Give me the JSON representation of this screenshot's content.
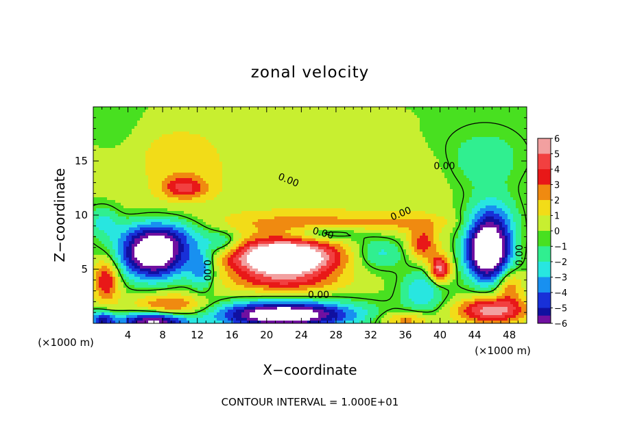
{
  "chart_data": {
    "type": "heatmap",
    "title": "zonal velocity",
    "xlabel": "X−coordinate",
    "ylabel": "Z−coordinate",
    "x_unit_left": "(×1000 m)",
    "x_unit_right": "(×1000 m)",
    "footer": "CONTOUR INTERVAL = 1.000E+01",
    "xlim": [
      0,
      50
    ],
    "ylim": [
      0,
      20
    ],
    "x_ticks": [
      4,
      8,
      12,
      16,
      20,
      24,
      28,
      32,
      36,
      40,
      44,
      48
    ],
    "x_tick_labels": [
      "4",
      "8",
      "12",
      "16",
      "20",
      "24",
      "28",
      "32",
      "36",
      "40",
      "44",
      "48"
    ],
    "y_ticks": [
      5,
      10,
      15
    ],
    "y_tick_labels": [
      "5",
      "10",
      "15"
    ],
    "contour_labels": [
      "0.00",
      "0.00",
      "0.00",
      "0.00",
      "0.00",
      "0.00",
      "0.00"
    ],
    "colorbar": {
      "levels": [
        6,
        5,
        4,
        3,
        2,
        1,
        0,
        -1,
        -2,
        -3,
        -4,
        -5,
        -6
      ],
      "labels": [
        "6",
        "5",
        "4",
        "3",
        "2",
        "1",
        "0",
        "−1",
        "−2",
        "−3",
        "−4",
        "−5",
        "−6"
      ],
      "colors": [
        "#f2a0a0",
        "#f24040",
        "#e81818",
        "#f08a10",
        "#f2dc18",
        "#c8ef30",
        "#48e020",
        "#30ef90",
        "#28e6e0",
        "#1890f0",
        "#1830d8",
        "#1010a0",
        "#7010a0"
      ]
    },
    "saturated_color": "#ffffff",
    "fields": [
      {
        "x": 25,
        "z": 11,
        "value": 0.9,
        "sx": 30,
        "sz": 6
      },
      {
        "x": 10,
        "z": 15.5,
        "value": 1.6,
        "sx": 5,
        "sz": 3
      },
      {
        "x": 26,
        "z": 19,
        "value": 0.8,
        "sx": 7,
        "sz": 1.5
      },
      {
        "x": 3,
        "z": 18,
        "value": -0.4,
        "sx": 2.5,
        "sz": 2.5
      },
      {
        "x": 45,
        "z": 15,
        "value": -1.9,
        "sx": 5,
        "sz": 3
      },
      {
        "x": 38,
        "z": 14,
        "value": 0.6,
        "sx": 3,
        "sz": 2
      },
      {
        "x": 10.5,
        "z": 12.5,
        "value": 3.5,
        "sx": 2.5,
        "sz": 1
      },
      {
        "x": 24,
        "z": 9.3,
        "value": 1.8,
        "sx": 9,
        "sz": 0.9
      },
      {
        "x": 36,
        "z": 9.3,
        "value": 1.4,
        "sx": 6,
        "sz": 0.8
      },
      {
        "x": 1,
        "z": 9.5,
        "value": -2.3,
        "sx": 2,
        "sz": 1.5
      },
      {
        "x": 7,
        "z": 6.3,
        "value": -9,
        "sx": 4,
        "sz": 2.2
      },
      {
        "x": 8,
        "z": 8.3,
        "value": -3,
        "sx": 5,
        "sz": 1.6
      },
      {
        "x": 12.5,
        "z": 5,
        "value": -3.5,
        "sx": 1.5,
        "sz": 2
      },
      {
        "x": 15,
        "z": 7.5,
        "value": -2.5,
        "sx": 2,
        "sz": 1
      },
      {
        "x": 22,
        "z": 6,
        "value": 10,
        "sx": 6,
        "sz": 1.7
      },
      {
        "x": 22,
        "z": 3.7,
        "value": 2.5,
        "sx": 7,
        "sz": 1
      },
      {
        "x": 27,
        "z": 8.3,
        "value": -2.5,
        "sx": 4,
        "sz": 0.7
      },
      {
        "x": 33,
        "z": 6.5,
        "value": -2.7,
        "sx": 3,
        "sz": 1.5
      },
      {
        "x": 38,
        "z": 7.3,
        "value": 3.5,
        "sx": 1.6,
        "sz": 1.5
      },
      {
        "x": 40,
        "z": 5,
        "value": 6,
        "sx": 1.2,
        "sz": 1.2
      },
      {
        "x": 38,
        "z": 3,
        "value": -3,
        "sx": 2.5,
        "sz": 2
      },
      {
        "x": 45.5,
        "z": 6.5,
        "value": -10,
        "sx": 2.5,
        "sz": 2.6
      },
      {
        "x": 46,
        "z": 9.5,
        "value": -3.5,
        "sx": 3,
        "sz": 2.5
      },
      {
        "x": 1.5,
        "z": 4,
        "value": 4.5,
        "sx": 1.5,
        "sz": 2
      },
      {
        "x": 9,
        "z": 1.5,
        "value": 4,
        "sx": 4.5,
        "sz": 1.2
      },
      {
        "x": 7,
        "z": 0.2,
        "value": -8,
        "sx": 4,
        "sz": 0.9
      },
      {
        "x": 22,
        "z": 0.8,
        "value": -9,
        "sx": 8,
        "sz": 1.2
      },
      {
        "x": 46,
        "z": 1.2,
        "value": 6,
        "sx": 4,
        "sz": 1.2
      },
      {
        "x": 48,
        "z": 3.5,
        "value": 3,
        "sx": 1.5,
        "sz": 1.5
      },
      {
        "x": 1,
        "z": 0.3,
        "value": -5,
        "sx": 1.5,
        "sz": 0.8
      },
      {
        "x": 36,
        "z": 0.3,
        "value": 3,
        "sx": 3,
        "sz": 0.8
      }
    ]
  }
}
